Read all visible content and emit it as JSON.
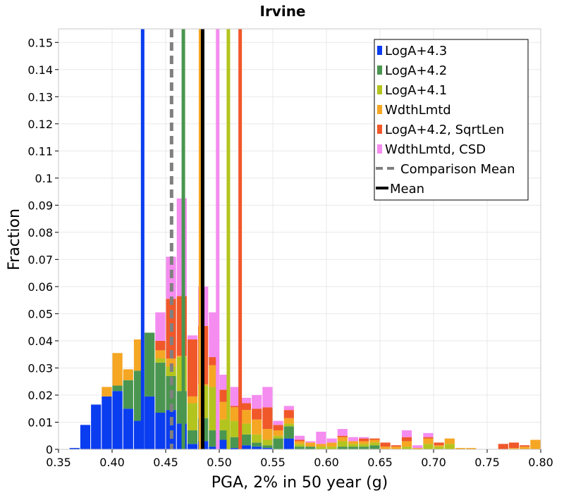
{
  "chart_data": {
    "type": "bar",
    "subtype": "stacked-histogram-with-mean-lines",
    "title": "Irvine",
    "xlabel": "PGA, 2% in 50 year (g)",
    "ylabel": "Fraction",
    "xlim": [
      0.35,
      0.8
    ],
    "ylim": [
      0,
      0.155
    ],
    "x_ticks": [
      "0.35",
      "0.40",
      "0.45",
      "0.50",
      "0.55",
      "0.60",
      "0.65",
      "0.70",
      "0.75",
      "0.80"
    ],
    "x_tick_values": [
      0.35,
      0.4,
      0.45,
      0.5,
      0.55,
      0.6,
      0.65,
      0.7,
      0.75,
      0.8
    ],
    "y_ticks": [
      "0",
      "0.01",
      "0.02",
      "0.03",
      "0.04",
      "0.05",
      "0.06",
      "0.07",
      "0.08",
      "0.09",
      "0.1",
      "0.11",
      "0.12",
      "0.13",
      "0.14",
      "0.15"
    ],
    "y_tick_values": [
      0,
      0.01,
      0.02,
      0.03,
      0.04,
      0.05,
      0.06,
      0.07,
      0.08,
      0.09,
      0.1,
      0.11,
      0.12,
      0.13,
      0.14,
      0.15
    ],
    "grid": true,
    "legend_position": "top-right",
    "bin_width": 0.01,
    "bin_starts": [
      0.35,
      0.36,
      0.37,
      0.38,
      0.39,
      0.4,
      0.41,
      0.42,
      0.43,
      0.44,
      0.45,
      0.46,
      0.47,
      0.48,
      0.49,
      0.5,
      0.51,
      0.52,
      0.53,
      0.54,
      0.55,
      0.56,
      0.57,
      0.58,
      0.59,
      0.6,
      0.61,
      0.62,
      0.63,
      0.64,
      0.65,
      0.66,
      0.67,
      0.68,
      0.69,
      0.7,
      0.71,
      0.72,
      0.73,
      0.74,
      0.75,
      0.76,
      0.77,
      0.78,
      0.79
    ],
    "series": [
      {
        "name": "LogA+4.3",
        "color": "#0a3cf0",
        "values": [
          0,
          0.0005,
          0.009,
          0.0165,
          0.0195,
          0.0215,
          0.015,
          0.0105,
          0.0195,
          0.0135,
          0.0145,
          0.0095,
          0.002,
          0.003,
          0.001,
          0.0035,
          0.0005,
          0.0015,
          0.001,
          0.0005,
          0,
          0.004,
          0,
          0,
          0,
          0,
          0,
          0,
          0,
          0,
          0,
          0,
          0,
          0,
          0,
          0,
          0,
          0,
          0,
          0,
          0,
          0,
          0,
          0,
          0
        ]
      },
      {
        "name": "LogA+4.2",
        "color": "#4a9650",
        "values": [
          0,
          0,
          0,
          0,
          0,
          0.002,
          0.0105,
          0.0185,
          0.0235,
          0.0185,
          0.0125,
          0.012,
          0.005,
          0.0085,
          0.006,
          0.0035,
          0.004,
          0.004,
          0.0015,
          0.001,
          0.004,
          0.0045,
          0.001,
          0.001,
          0,
          0,
          0.001,
          0.001,
          0.001,
          0.0015,
          0,
          0,
          0,
          0,
          0,
          0,
          0,
          0,
          0,
          0,
          0,
          0,
          0,
          0,
          0
        ]
      },
      {
        "name": "LogA+4.1",
        "color": "#b4c41e",
        "values": [
          0,
          0,
          0,
          0,
          0,
          0,
          0,
          0,
          0,
          0.0015,
          0.0035,
          0.0125,
          0.01,
          0.012,
          0.016,
          0.004,
          0.006,
          0.004,
          0.003,
          0.002,
          0.001,
          0.001,
          0.001,
          0,
          0.001,
          0.001,
          0.002,
          0.001,
          0.001,
          0.001,
          0,
          0,
          0.001,
          0,
          0.002,
          0.001,
          0.002,
          0,
          0,
          0,
          0,
          0,
          0,
          0,
          0
        ]
      },
      {
        "name": "WdthLmtd",
        "color": "#f5a623",
        "values": [
          0,
          0,
          0,
          0,
          0.0035,
          0.012,
          0.004,
          0.0115,
          0.0,
          0.003,
          0.003,
          0.0005,
          0.0025,
          0.0005,
          0.008,
          0.0065,
          0.005,
          0.005,
          0.0055,
          0.004,
          0.002,
          0.002,
          0.001,
          0.0015,
          0.001,
          0.0015,
          0.0015,
          0.001,
          0.001,
          0.001,
          0.001,
          0.001,
          0.002,
          0.0005,
          0.002,
          0.0005,
          0.002,
          0.0005,
          0.0005,
          0,
          0,
          0,
          0.0005,
          0.001,
          0.0035
        ]
      },
      {
        "name": "LogA+4.2, SqrtLen",
        "color": "#f0582a",
        "values": [
          0,
          0,
          0,
          0,
          0,
          0,
          0,
          0,
          0,
          0.0035,
          0.022,
          0.022,
          0.021,
          0.0215,
          0.003,
          0.0045,
          0.0005,
          0.0025,
          0.004,
          0.008,
          0.002,
          0.003,
          0.0005,
          0,
          0,
          0,
          0.0005,
          0,
          0.001,
          0.0005,
          0.0015,
          0.0005,
          0.0015,
          0,
          0.0005,
          0.001,
          0,
          0,
          0,
          0,
          0,
          0.002,
          0.002,
          0.0005,
          0
        ]
      },
      {
        "name": "WdthLmtd, CSD",
        "color": "#f58cf0",
        "values": [
          0,
          0,
          0,
          0,
          0,
          0,
          0,
          0,
          0,
          0.0105,
          0.0155,
          0.036,
          0.0015,
          0.0145,
          0.0165,
          0.0055,
          0.007,
          0.002,
          0.005,
          0.0075,
          0.0015,
          0.0015,
          0.0015,
          0.0005,
          0.0045,
          0.0015,
          0.0025,
          0.0015,
          0.0005,
          0,
          0,
          0,
          0.0025,
          0.001,
          0.0015,
          0,
          0,
          0,
          0,
          0,
          0,
          0,
          0,
          0,
          0
        ]
      }
    ],
    "mean_lines": [
      {
        "name": "LogA+4.3",
        "x": 0.4285,
        "color": "#0a3cf0",
        "style": "solid"
      },
      {
        "name": "Comparison Mean",
        "x": 0.4555,
        "color": "#808080",
        "style": "dashed"
      },
      {
        "name": "LogA+4.2",
        "x": 0.4665,
        "color": "#4a9650",
        "style": "solid"
      },
      {
        "name": "WdthLmtd",
        "x": 0.4825,
        "color": "#f5a623",
        "style": "solid"
      },
      {
        "name": "Mean",
        "x": 0.4845,
        "color": "#000000",
        "style": "solid"
      },
      {
        "name": "WdthLmtd, CSD",
        "x": 0.4985,
        "color": "#f58cf0",
        "style": "solid"
      },
      {
        "name": "LogA+4.1",
        "x": 0.5085,
        "color": "#b4c41e",
        "style": "solid"
      },
      {
        "name": "LogA+4.2, SqrtLen",
        "x": 0.5195,
        "color": "#f0582a",
        "style": "solid"
      }
    ],
    "legend": [
      {
        "label": "LogA+4.3",
        "color": "#0a3cf0",
        "kind": "box"
      },
      {
        "label": "LogA+4.2",
        "color": "#4a9650",
        "kind": "box"
      },
      {
        "label": "LogA+4.1",
        "color": "#b4c41e",
        "kind": "box"
      },
      {
        "label": "WdthLmtd",
        "color": "#f5a623",
        "kind": "box"
      },
      {
        "label": "LogA+4.2, SqrtLen",
        "color": "#f0582a",
        "kind": "box"
      },
      {
        "label": "WdthLmtd, CSD",
        "color": "#f58cf0",
        "kind": "box"
      },
      {
        "label": "Comparison Mean",
        "color": "#808080",
        "kind": "dashed"
      },
      {
        "label": "Mean",
        "color": "#000000",
        "kind": "line"
      }
    ]
  }
}
